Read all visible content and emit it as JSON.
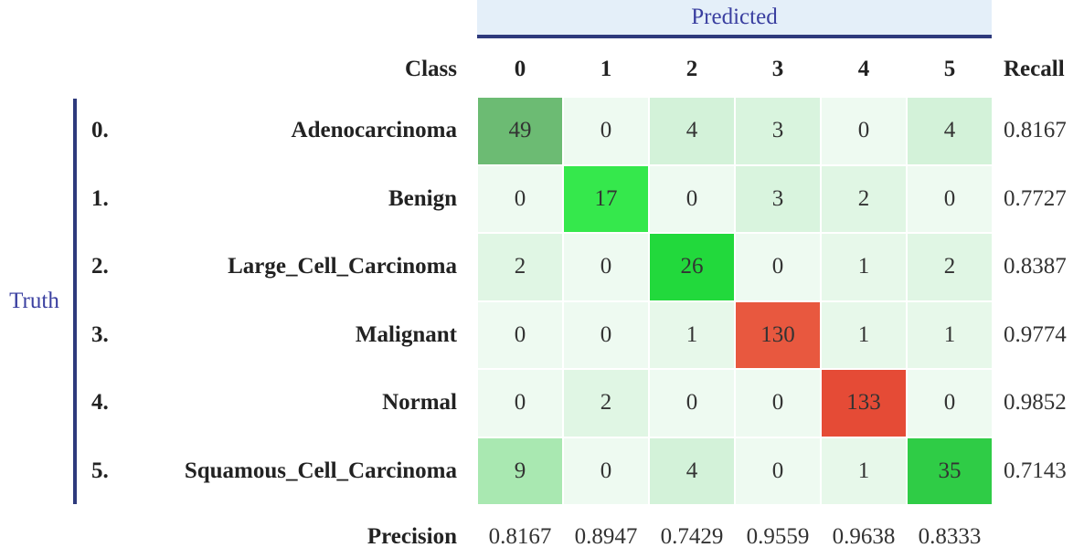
{
  "header": {
    "predicted": "Predicted",
    "truth": "Truth"
  },
  "table": {
    "class_label": "Class",
    "columns": [
      "0",
      "1",
      "2",
      "3",
      "4",
      "5"
    ],
    "recall_label": "Recall",
    "rows": [
      {
        "index": "0.",
        "name": "Adenocarcinoma",
        "cells": [
          49,
          0,
          4,
          3,
          0,
          4
        ],
        "colors": [
          "#6cbb73",
          "#eefaf1",
          "#d3f2d9",
          "#d9f4de",
          "#eefaf1",
          "#d3f2d9"
        ],
        "recall": 0.8167
      },
      {
        "index": "1.",
        "name": "Benign",
        "cells": [
          0,
          17,
          0,
          3,
          2,
          0
        ],
        "colors": [
          "#eefaf1",
          "#35e84c",
          "#eefaf1",
          "#d9f4de",
          "#e0f6e4",
          "#eefaf1"
        ],
        "recall": 0.7727
      },
      {
        "index": "2.",
        "name": "Large_Cell_Carcinoma",
        "cells": [
          2,
          0,
          26,
          0,
          1,
          2
        ],
        "colors": [
          "#e0f6e4",
          "#eefaf1",
          "#22d93c",
          "#eefaf1",
          "#e7f8ea",
          "#e0f6e4"
        ],
        "recall": 0.8387
      },
      {
        "index": "3.",
        "name": "Malignant",
        "cells": [
          0,
          0,
          1,
          130,
          1,
          1
        ],
        "colors": [
          "#eefaf1",
          "#eefaf1",
          "#e7f8ea",
          "#e8583f",
          "#e7f8ea",
          "#e7f8ea"
        ],
        "recall": 0.9774
      },
      {
        "index": "4.",
        "name": "Normal",
        "cells": [
          0,
          2,
          0,
          0,
          133,
          0
        ],
        "colors": [
          "#eefaf1",
          "#e0f6e4",
          "#eefaf1",
          "#eefaf1",
          "#e54b36",
          "#eefaf1"
        ],
        "recall": 0.9852
      },
      {
        "index": "5.",
        "name": "Squamous_Cell_Carcinoma",
        "cells": [
          9,
          0,
          4,
          0,
          1,
          35
        ],
        "colors": [
          "#a9e8b1",
          "#eefaf1",
          "#d3f2d9",
          "#eefaf1",
          "#e7f8ea",
          "#2fcc46"
        ],
        "recall": 0.7143
      }
    ],
    "precision_label": "Precision",
    "precision": [
      0.8167,
      0.8947,
      0.7429,
      0.9559,
      0.9638,
      0.8333
    ]
  }
}
